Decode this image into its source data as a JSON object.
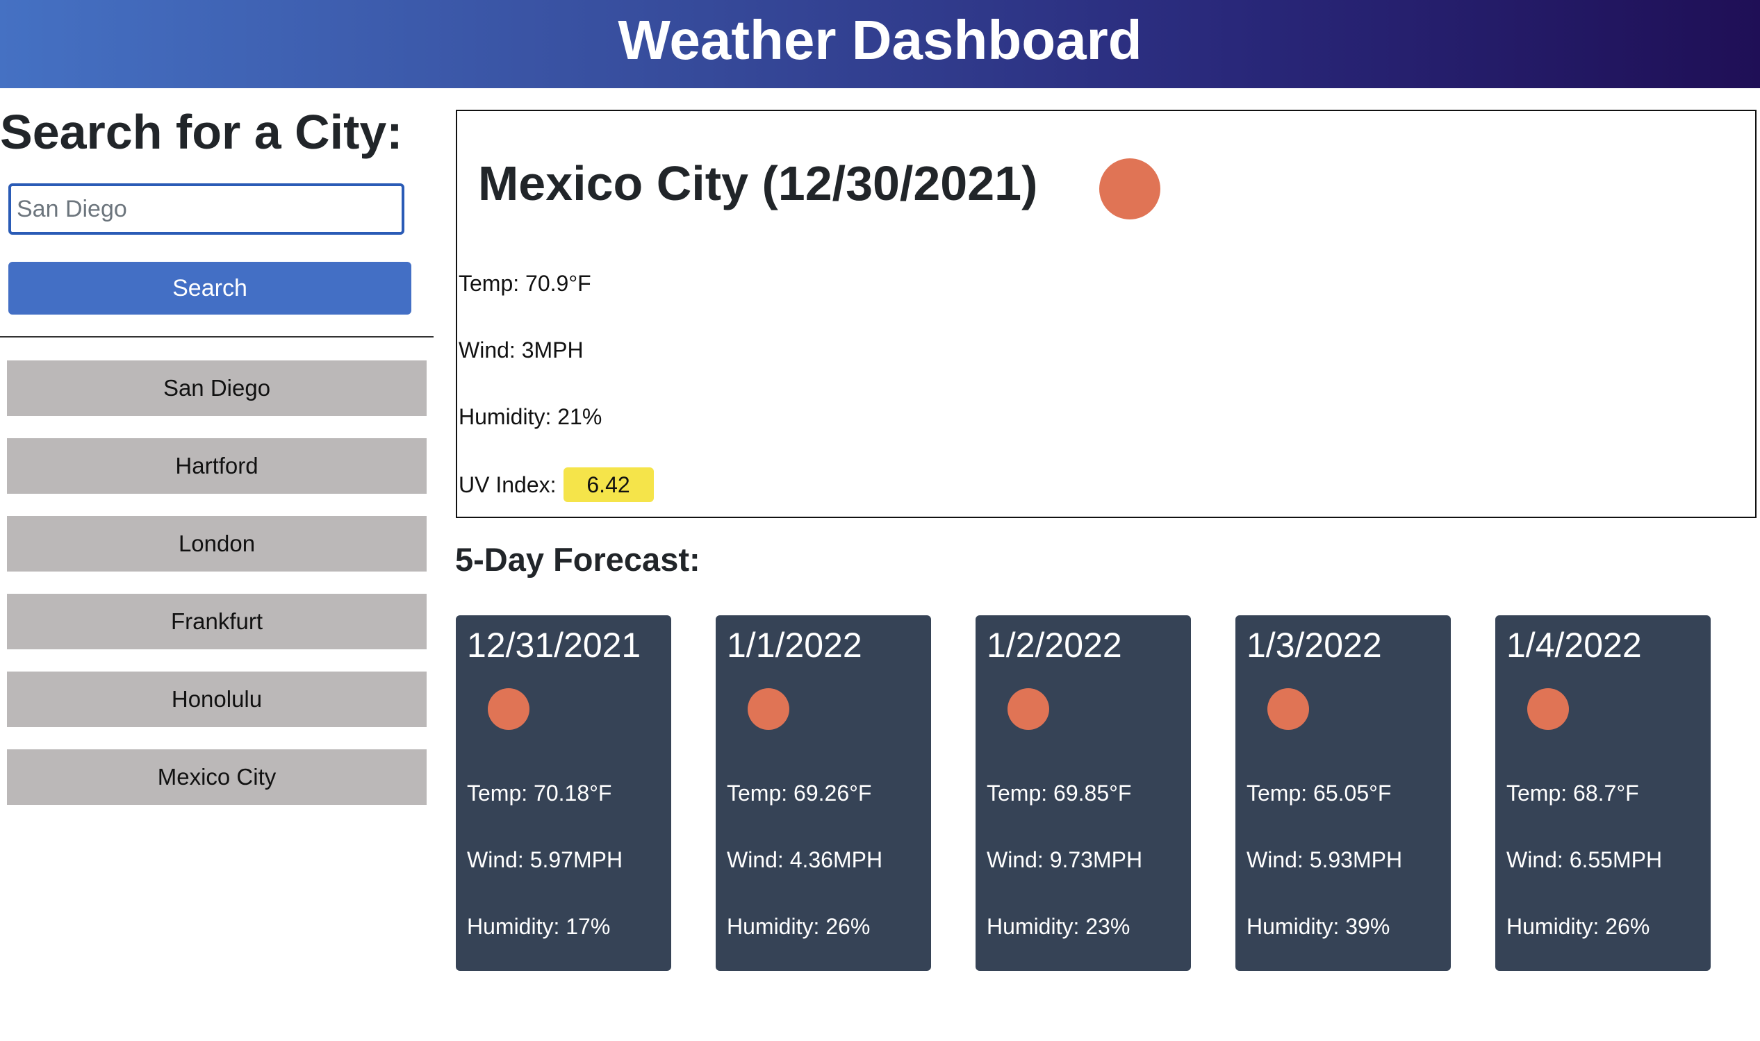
{
  "header": {
    "title": "Weather Dashboard"
  },
  "sidebar": {
    "heading": "Search for a City:",
    "search_placeholder": "San Diego",
    "search_button_label": "Search",
    "history": [
      "San Diego",
      "Hartford",
      "London",
      "Frankfurt",
      "Honolulu",
      "Mexico City"
    ]
  },
  "current": {
    "title": "Mexico City (12/30/2021)",
    "icon": "sun-icon",
    "temp": "Temp: 70.9°F",
    "wind": "Wind: 3MPH",
    "humidity": "Humidity: 21%",
    "uv_label": "UV Index:",
    "uv_value": "6.42",
    "uv_color": "#f5e44a"
  },
  "forecast": {
    "heading": "5-Day Forecast:",
    "days": [
      {
        "date": "12/31/2021",
        "icon": "sun-icon",
        "temp": "Temp: 70.18°F",
        "wind": "Wind: 5.97MPH",
        "humidity": "Humidity: 17%"
      },
      {
        "date": "1/1/2022",
        "icon": "sun-icon",
        "temp": "Temp: 69.26°F",
        "wind": "Wind: 4.36MPH",
        "humidity": "Humidity: 26%"
      },
      {
        "date": "1/2/2022",
        "icon": "sun-icon",
        "temp": "Temp: 69.85°F",
        "wind": "Wind: 9.73MPH",
        "humidity": "Humidity: 23%"
      },
      {
        "date": "1/3/2022",
        "icon": "sun-icon",
        "temp": "Temp: 65.05°F",
        "wind": "Wind: 5.93MPH",
        "humidity": "Humidity: 39%"
      },
      {
        "date": "1/4/2022",
        "icon": "sun-icon",
        "temp": "Temp: 68.7°F",
        "wind": "Wind: 6.55MPH",
        "humidity": "Humidity: 26%"
      }
    ]
  },
  "colors": {
    "header_gradient_start": "#4571c3",
    "header_gradient_end": "#1f0f56",
    "search_button": "#436fc5",
    "history_button": "#bbb8b8",
    "forecast_card": "#364356",
    "sun_icon": "#e07455"
  }
}
